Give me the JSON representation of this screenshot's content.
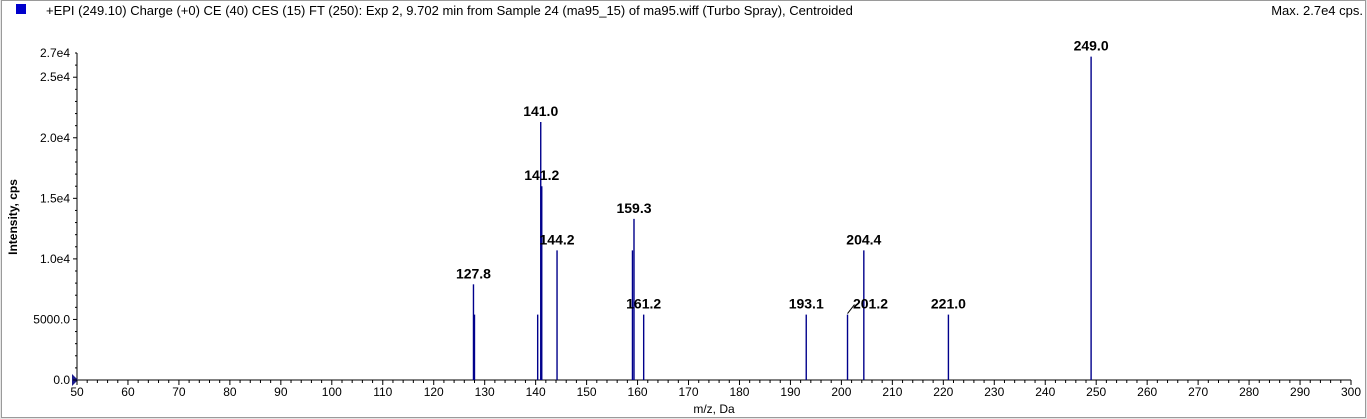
{
  "header": {
    "title": "+EPI (249.10) Charge (+0) CE (40) CES (15) FT (250): Exp 2, 9.702 min from Sample 24 (ma95_15) of ma95.wiff (Turbo Spray), Centroided",
    "max_label": "Max. 2.7e4 cps."
  },
  "colors": {
    "series": "#00008b",
    "legend": "#0000cc",
    "axis": "#000000"
  },
  "chart_data": {
    "type": "bar",
    "xlabel": "m/z, Da",
    "ylabel": "Intensity, cps",
    "xlim": [
      50,
      300
    ],
    "ylim": [
      0,
      27000
    ],
    "x_ticks": [
      50,
      60,
      70,
      80,
      90,
      100,
      110,
      120,
      130,
      140,
      150,
      160,
      170,
      180,
      190,
      200,
      210,
      220,
      230,
      240,
      250,
      260,
      270,
      280,
      290,
      300
    ],
    "y_ticks": [
      {
        "value": 0,
        "label": "0.0"
      },
      {
        "value": 5000,
        "label": "5000.0"
      },
      {
        "value": 10000,
        "label": "1.0e4"
      },
      {
        "value": 15000,
        "label": "1.5e4"
      },
      {
        "value": 20000,
        "label": "2.0e4"
      },
      {
        "value": 25000,
        "label": "2.5e4"
      },
      {
        "value": 27000,
        "label": "2.7e4"
      }
    ],
    "peaks": [
      {
        "mz": 127.8,
        "intensity": 7900
      },
      {
        "mz": 128.0,
        "intensity": 5400
      },
      {
        "mz": 140.4,
        "intensity": 5400
      },
      {
        "mz": 141.0,
        "intensity": 21300
      },
      {
        "mz": 141.2,
        "intensity": 16000
      },
      {
        "mz": 144.2,
        "intensity": 10700
      },
      {
        "mz": 159.0,
        "intensity": 10700
      },
      {
        "mz": 159.3,
        "intensity": 13300
      },
      {
        "mz": 161.2,
        "intensity": 5400
      },
      {
        "mz": 193.1,
        "intensity": 5400
      },
      {
        "mz": 201.2,
        "intensity": 5400
      },
      {
        "mz": 204.4,
        "intensity": 10700
      },
      {
        "mz": 221.0,
        "intensity": 5400
      },
      {
        "mz": 249.0,
        "intensity": 26700
      }
    ],
    "annotations": [
      {
        "text": "127.8",
        "mz": 127.8,
        "intensity": 7900
      },
      {
        "text": "141.0",
        "mz": 141.0,
        "intensity": 21300
      },
      {
        "text": "141.2",
        "mz": 141.2,
        "intensity": 16000
      },
      {
        "text": "144.2",
        "mz": 144.2,
        "intensity": 10700
      },
      {
        "text": "159.3",
        "mz": 159.3,
        "intensity": 13300
      },
      {
        "text": "161.2",
        "mz": 161.2,
        "intensity": 5400
      },
      {
        "text": "193.1",
        "mz": 193.1,
        "intensity": 5400
      },
      {
        "text": "201.2",
        "mz": 201.2,
        "intensity": 5400
      },
      {
        "text": "204.4",
        "mz": 204.4,
        "intensity": 10700
      },
      {
        "text": "221.0",
        "mz": 221.0,
        "intensity": 5400
      },
      {
        "text": "249.0",
        "mz": 249.0,
        "intensity": 26700
      }
    ]
  }
}
